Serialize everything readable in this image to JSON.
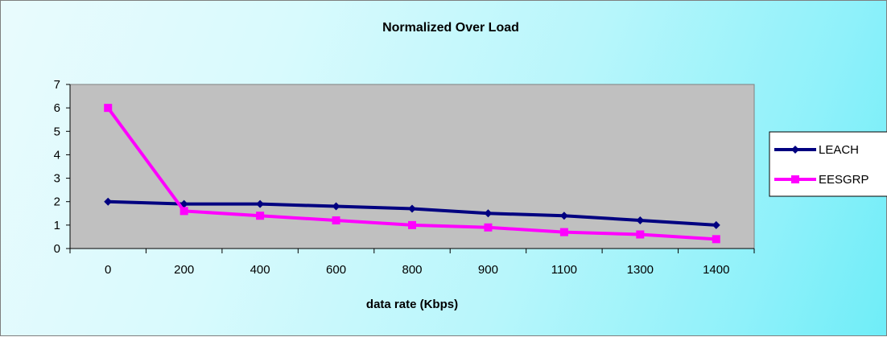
{
  "chart_data": {
    "type": "line",
    "title": "Normalized Over Load",
    "xlabel": "data rate (Kbps)",
    "ylabel": "",
    "categories": [
      "0",
      "200",
      "400",
      "600",
      "800",
      "900",
      "1100",
      "1300",
      "1400"
    ],
    "ylim": [
      0,
      7
    ],
    "yticks": [
      0,
      1,
      2,
      3,
      4,
      5,
      6,
      7
    ],
    "grid": false,
    "legend_position": "right",
    "plot_background": "#c0c0c0",
    "series": [
      {
        "name": "LEACH",
        "color": "#000080",
        "marker": "diamond",
        "values": [
          2.0,
          1.9,
          1.9,
          1.8,
          1.7,
          1.5,
          1.4,
          1.2,
          1.0
        ]
      },
      {
        "name": "EESGRP",
        "color": "#ff00ff",
        "marker": "square",
        "values": [
          6.0,
          1.6,
          1.4,
          1.2,
          1.0,
          0.9,
          0.7,
          0.6,
          0.4
        ]
      }
    ]
  }
}
